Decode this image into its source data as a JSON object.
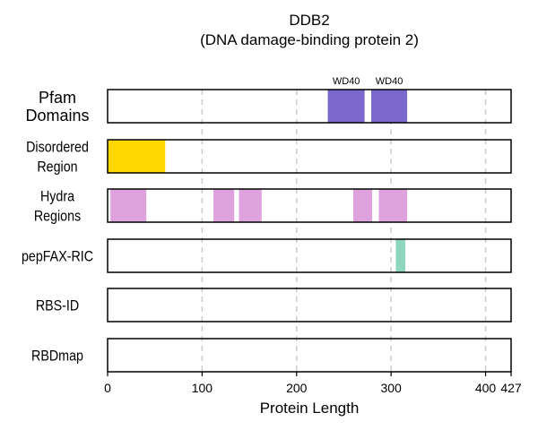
{
  "chart_data": {
    "type": "bar",
    "title": "DDB2",
    "subtitle": "(DNA damage-binding protein 2)",
    "xlabel": "Protein Length",
    "xlim": [
      0,
      427
    ],
    "xticks": [
      0,
      100,
      200,
      300,
      400,
      427
    ],
    "grid": "vertical dashed at 100, 200, 300, 400",
    "tracks": [
      {
        "label": [
          "Pfam",
          "Domains"
        ],
        "segments": [
          {
            "start": 233,
            "end": 272,
            "color": "#7a68cc",
            "label": "WD40"
          },
          {
            "start": 279,
            "end": 317,
            "color": "#7a68cc",
            "label": "WD40"
          }
        ]
      },
      {
        "label": [
          "Disordered",
          "Region"
        ],
        "segments": [
          {
            "start": 0,
            "end": 61,
            "color": "#ffd700"
          }
        ]
      },
      {
        "label": [
          "Hydra",
          "Regions"
        ],
        "segments": [
          {
            "start": 3,
            "end": 41,
            "color": "#dea3dd"
          },
          {
            "start": 112,
            "end": 134,
            "color": "#dea3dd"
          },
          {
            "start": 139,
            "end": 163,
            "color": "#dea3dd"
          },
          {
            "start": 260,
            "end": 280,
            "color": "#dea3dd"
          },
          {
            "start": 287,
            "end": 317,
            "color": "#dea3dd"
          }
        ]
      },
      {
        "label": [
          "pepFAX-RIC"
        ],
        "segments": [
          {
            "start": 305,
            "end": 315,
            "color": "#8ed6bf"
          }
        ]
      },
      {
        "label": [
          "RBS-ID"
        ],
        "segments": []
      },
      {
        "label": [
          "RBDmap"
        ],
        "segments": []
      }
    ]
  }
}
